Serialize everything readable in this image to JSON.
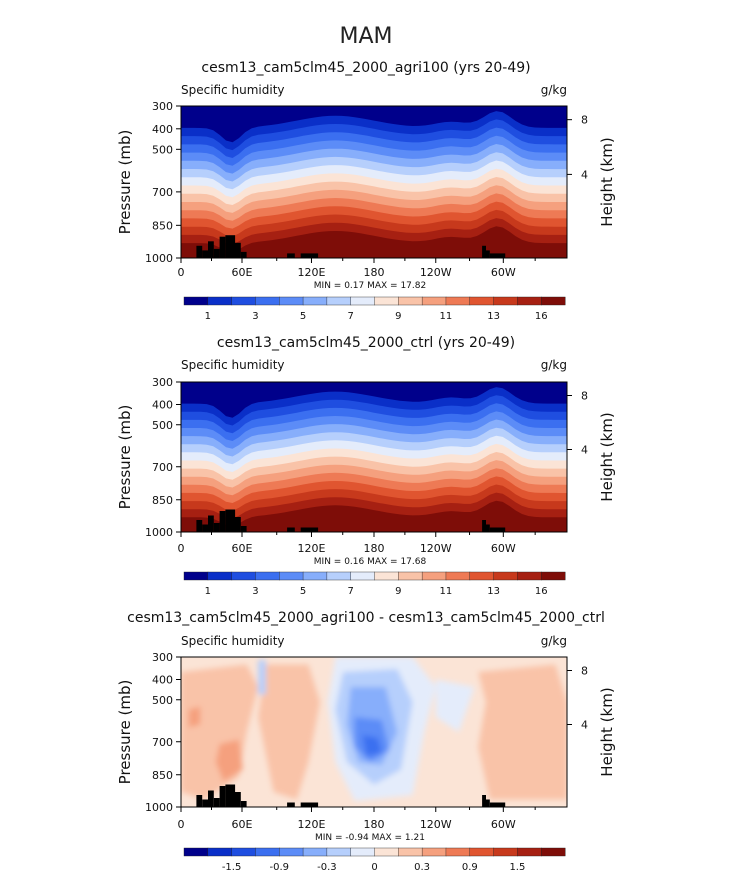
{
  "figure_title": "MAM",
  "chart_data": [
    {
      "type": "contour",
      "title": "cesm13_cam5clm45_2000_agri100 (yrs 20-49)",
      "left_label": "Specific humidity",
      "right_label": "g/kg",
      "ylabel": "Pressure (mb)",
      "ylabel_right": "Height (km)",
      "yticks": [
        "300",
        "400",
        "500",
        "700",
        "850",
        "1000"
      ],
      "yticks_right": [
        "8",
        "4"
      ],
      "xticks": [
        "0",
        "60E",
        "120E",
        "180",
        "120W",
        "60W"
      ],
      "stats": "MIN =    0.17  MAX =   17.82",
      "colorbar_labels": [
        "1",
        "3",
        "5",
        "7",
        "9",
        "11",
        "13",
        "16"
      ]
    },
    {
      "type": "contour",
      "title": "cesm13_cam5clm45_2000_ctrl (yrs 20-49)",
      "left_label": "Specific humidity",
      "right_label": "g/kg",
      "ylabel": "Pressure (mb)",
      "ylabel_right": "Height (km)",
      "yticks": [
        "300",
        "400",
        "500",
        "700",
        "850",
        "1000"
      ],
      "yticks_right": [
        "8",
        "4"
      ],
      "xticks": [
        "0",
        "60E",
        "120E",
        "180",
        "120W",
        "60W"
      ],
      "stats": "MIN =    0.16  MAX =   17.68",
      "colorbar_labels": [
        "1",
        "3",
        "5",
        "7",
        "9",
        "11",
        "13",
        "16"
      ]
    },
    {
      "type": "contour",
      "title": "cesm13_cam5clm45_2000_agri100 - cesm13_cam5clm45_2000_ctrl",
      "left_label": "Specific humidity",
      "right_label": "g/kg",
      "ylabel": "Pressure (mb)",
      "ylabel_right": "Height (km)",
      "yticks": [
        "300",
        "400",
        "500",
        "700",
        "850",
        "1000"
      ],
      "yticks_right": [
        "8",
        "4"
      ],
      "xticks": [
        "0",
        "60E",
        "120E",
        "180",
        "120W",
        "60W"
      ],
      "stats": "MIN =   -0.94  MAX =    1.21",
      "colorbar_labels": [
        "-1.5",
        "-0.9",
        "-0.3",
        "0",
        "0.3",
        "0.9",
        "1.5"
      ]
    }
  ],
  "colors": {
    "cbar_abs": [
      "#00008b",
      "#0a2fc8",
      "#1f4ee0",
      "#3b6ff0",
      "#5c8cf7",
      "#87aefb",
      "#b6cffc",
      "#e4ecfb",
      "#fbe4d6",
      "#f9c3a8",
      "#f5a07e",
      "#ee7a55",
      "#e05530",
      "#c7391c",
      "#a62012",
      "#7e0d08"
    ],
    "cbar_diff": [
      "#00008b",
      "#0a2fc8",
      "#1f4ee0",
      "#3b6ff0",
      "#5c8cf7",
      "#87aefb",
      "#b6cffc",
      "#e4ecfb",
      "#fbe4d6",
      "#f9c3a8",
      "#f5a07e",
      "#ee7a55",
      "#e05530",
      "#c7391c",
      "#a62012",
      "#7e0d08"
    ]
  }
}
